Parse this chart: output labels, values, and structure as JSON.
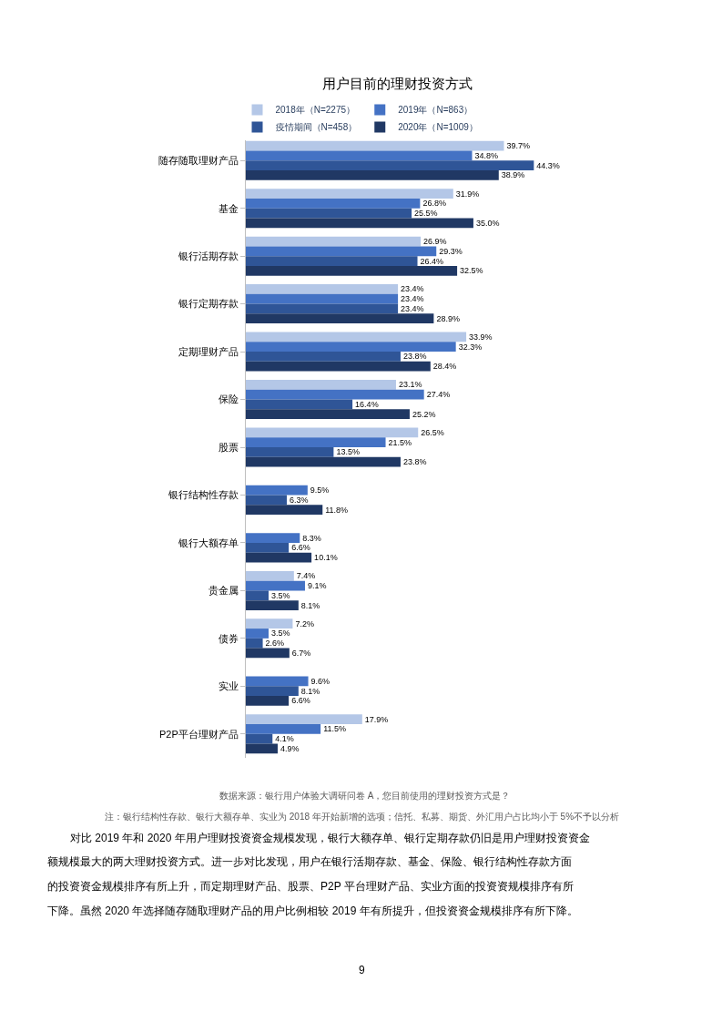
{
  "chart_data": {
    "type": "bar",
    "orientation": "horizontal",
    "title": "用户目前的理财投资方式",
    "categories": [
      "随存随取理财产品",
      "基金",
      "银行活期存款",
      "银行定期存款",
      "定期理财产品",
      "保险",
      "股票",
      "银行结构性存款",
      "银行大额存单",
      "贵金属",
      "债券",
      "实业",
      "P2P平台理财产品"
    ],
    "series": [
      {
        "name": "2018年（N=2275）",
        "color": "#b4c7e7",
        "values": [
          39.7,
          31.9,
          26.9,
          23.4,
          33.9,
          23.1,
          26.5,
          null,
          null,
          7.4,
          7.2,
          null,
          17.9
        ],
        "value_labels": [
          "39.7%",
          "31.9%",
          "26.9%",
          "23.4%",
          "33.9%",
          "23.1%",
          "26.5%",
          null,
          null,
          "7.4%",
          "7.2%",
          null,
          "17.9%"
        ]
      },
      {
        "name": "2019年（N=863）",
        "color": "#4472c4",
        "values": [
          34.8,
          26.8,
          29.3,
          23.4,
          32.3,
          27.4,
          21.5,
          9.5,
          8.3,
          9.1,
          3.5,
          9.6,
          11.5
        ],
        "value_labels": [
          "34.8%",
          "26.8%",
          "29.3%",
          "23.4%",
          "32.3%",
          "27.4%",
          "21.5%",
          "9.5%",
          "8.3%",
          "9.1%",
          "3.5%",
          "9.6%",
          "11.5%"
        ]
      },
      {
        "name": "疫情期间（N=458）",
        "color": "#2f5597",
        "values": [
          44.3,
          25.5,
          26.4,
          23.4,
          23.8,
          16.4,
          13.5,
          6.3,
          6.6,
          3.5,
          2.6,
          8.1,
          4.1
        ],
        "value_labels": [
          "44.3%",
          "25.5%",
          "26.4%",
          "23.4%",
          "23.8%",
          "16.4%",
          "13.5%",
          "6.3%",
          "6.6%",
          "3.5%",
          "2.6%",
          "8.1%",
          "4.1%"
        ]
      },
      {
        "name": "2020年（N=1009）",
        "color": "#203864",
        "values": [
          38.9,
          35.0,
          32.5,
          28.9,
          28.4,
          25.2,
          23.8,
          11.8,
          10.1,
          8.1,
          6.7,
          6.6,
          4.9
        ],
        "value_labels": [
          "38.9%",
          "35.0%",
          "32.5%",
          "28.9%",
          "28.4%",
          "25.2%",
          "23.8%",
          "11.8%",
          "10.1%",
          "8.1%",
          "6.7%",
          "6.6%",
          "4.9%"
        ]
      }
    ],
    "tick_labels": "y",
    "legend": "top",
    "annotations": [
      "数据来源：银行用户体验大调研问卷 A，您目前使用的理财投资方式是？",
      "注：银行结构性存款、银行大额存单、实业为 2018 年开始新增的选项；信托、私募、期货、外汇用户占比均小于 5%不予以分析",
      "对比 2019 年和 2020 年用户理财投资资金规模发现，银行大额存单、银行定期存款仍旧是用户理财投资资金",
      "额规模最大的两大理财投资方式。进一步对比发现，用户在银行活期存款、基金、保险、银行结构性存款方面",
      "的投资资金规模排序有所上升，而定期理财产品、股票、P2P 平台理财产品、实业方面的投资资规模排序有所",
      "下降。虽然 2020 年选择随存随取理财产品的用户比例相较 2019 年有所提升，但投资资金规模排序有所下降。",
      "9"
    ]
  }
}
